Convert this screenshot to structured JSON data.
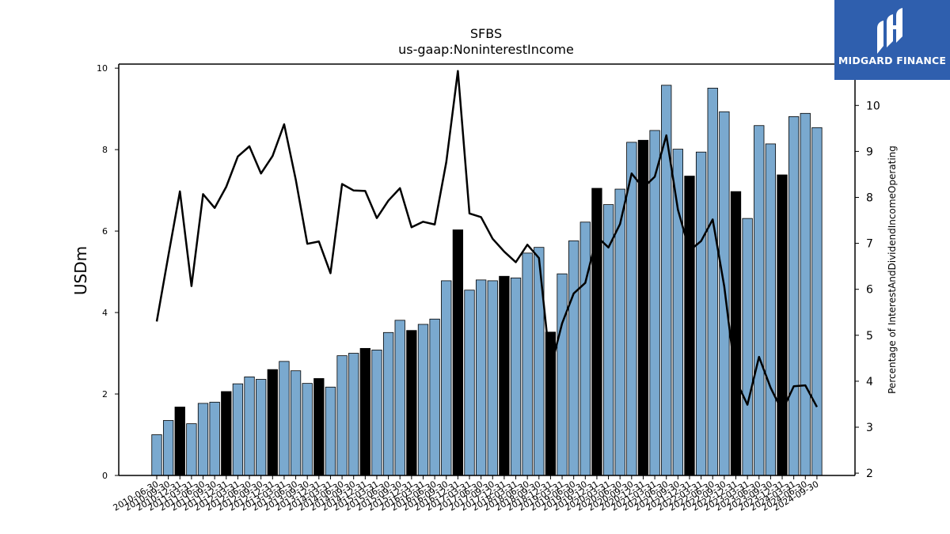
{
  "chart_data": {
    "type": "bar",
    "title": "SFBS",
    "subtitle": "us-gaap:NoninterestIncome",
    "ylabel": "USDm",
    "y2label": "Percentage of InterestAndDividendIncomeOperating",
    "ylim": [
      0,
      10.1
    ],
    "y2lim": [
      1.95,
      10.9
    ],
    "yticks": [
      0,
      2,
      4,
      6,
      8,
      10
    ],
    "y2ticks": [
      2,
      3,
      4,
      5,
      6,
      7,
      8,
      9,
      10
    ],
    "grid": false,
    "bar_color": "#7aa9cf",
    "highlight_color": "#000000",
    "line_color": "#000000",
    "categories": [
      "2010-06-30",
      "2010-09-30",
      "2010-12-31",
      "2011-03-31",
      "2011-06-30",
      "2011-09-30",
      "2011-12-31",
      "2012-03-31",
      "2012-06-30",
      "2012-09-30",
      "2012-12-31",
      "2013-03-31",
      "2013-06-30",
      "2013-09-30",
      "2013-12-31",
      "2014-03-31",
      "2014-06-30",
      "2014-09-30",
      "2014-12-31",
      "2015-03-31",
      "2015-06-30",
      "2015-09-30",
      "2015-12-31",
      "2016-03-31",
      "2016-06-30",
      "2016-09-30",
      "2016-12-31",
      "2017-03-31",
      "2017-06-30",
      "2017-09-30",
      "2017-12-31",
      "2018-03-31",
      "2018-06-30",
      "2018-09-30",
      "2018-12-31",
      "2019-03-31",
      "2019-06-30",
      "2019-09-30",
      "2019-12-31",
      "2020-03-31",
      "2020-06-30",
      "2020-09-30",
      "2020-12-31",
      "2021-03-31",
      "2021-06-30",
      "2021-09-30",
      "2021-12-31",
      "2022-03-31",
      "2022-06-30",
      "2022-09-30",
      "2022-12-31",
      "2023-03-31",
      "2023-06-30",
      "2023-09-30",
      "2023-12-31",
      "2024-03-31",
      "2024-06-30",
      "2024-09-30"
    ],
    "series": [
      {
        "kind": "bar",
        "axis": "left",
        "values": [
          1.0,
          1.35,
          1.68,
          1.27,
          1.77,
          1.8,
          2.06,
          2.25,
          2.42,
          2.36,
          2.6,
          2.8,
          2.57,
          2.26,
          2.38,
          2.17,
          2.94,
          3.0,
          3.12,
          3.08,
          3.51,
          3.81,
          3.56,
          3.71,
          3.84,
          4.78,
          6.03,
          4.55,
          4.8,
          4.78,
          4.89,
          4.85,
          5.46,
          5.6,
          3.52,
          4.95,
          5.76,
          6.22,
          7.05,
          6.65,
          7.03,
          8.18,
          8.23,
          8.47,
          9.58,
          8.01,
          7.35,
          7.94,
          9.51,
          8.93,
          6.97,
          6.31,
          8.59,
          8.14,
          7.38,
          8.81,
          8.89,
          8.54
        ],
        "highlight": [
          false,
          false,
          true,
          false,
          false,
          false,
          true,
          false,
          false,
          false,
          true,
          false,
          false,
          false,
          true,
          false,
          false,
          false,
          true,
          false,
          false,
          false,
          true,
          false,
          false,
          false,
          true,
          false,
          false,
          false,
          true,
          false,
          false,
          false,
          true,
          false,
          false,
          false,
          true,
          false,
          false,
          false,
          true,
          false,
          false,
          false,
          true,
          false,
          false,
          false,
          true,
          false,
          false,
          false,
          true,
          false,
          false,
          false
        ]
      },
      {
        "kind": "line",
        "axis": "right",
        "values": [
          5.3,
          6.73,
          8.13,
          6.07,
          8.07,
          7.77,
          8.23,
          8.89,
          9.11,
          8.52,
          8.9,
          9.59,
          8.39,
          6.99,
          7.04,
          6.35,
          8.29,
          8.15,
          8.14,
          7.55,
          7.93,
          8.2,
          7.35,
          7.47,
          7.41,
          8.77,
          10.75,
          7.65,
          7.57,
          7.1,
          6.82,
          6.59,
          6.97,
          6.68,
          4.27,
          5.26,
          5.91,
          6.14,
          7.15,
          6.91,
          7.42,
          8.52,
          8.21,
          8.45,
          9.35,
          7.73,
          6.84,
          7.05,
          7.52,
          6.06,
          4.02,
          3.49,
          4.53,
          3.86,
          3.35,
          3.89,
          3.91,
          3.44
        ]
      }
    ]
  },
  "logo": {
    "text": "MIDGARD FINANCE",
    "bg": "#2f5fae",
    "fg": "#ffffff"
  }
}
